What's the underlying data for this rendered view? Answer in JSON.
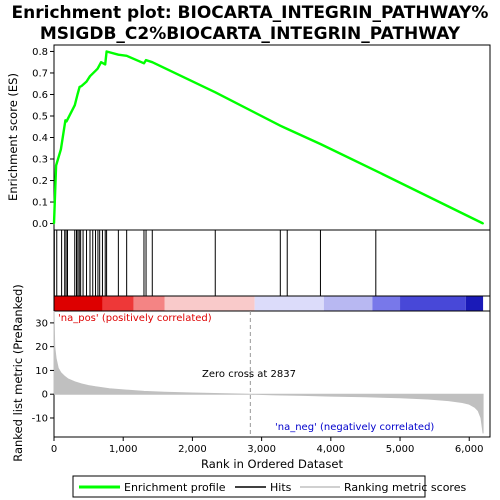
{
  "chart_data": {
    "type": "line",
    "title_line1": "Enrichment plot: BIOCARTA_INTEGRIN_PATHWAY%",
    "title_line2": "MSIGDB_C2%BIOCARTA_INTEGRIN_PATHWAY",
    "xlabel": "Rank in Ordered Dataset",
    "es_ylabel": "Enrichment score (ES)",
    "rank_ylabel": "Ranked list metric (PreRanked)",
    "xlim": [
      0,
      6300
    ],
    "es_ylim": [
      -0.03,
      0.83
    ],
    "rank_ylim": [
      -18,
      35
    ],
    "x_ticks": [
      0,
      1000,
      2000,
      3000,
      4000,
      5000,
      6000
    ],
    "x_tick_labels": [
      "0",
      "1,000",
      "2,000",
      "3,000",
      "4,000",
      "5,000",
      "6,000"
    ],
    "es_ticks": [
      0.0,
      0.1,
      0.2,
      0.3,
      0.4,
      0.5,
      0.6,
      0.7,
      0.8
    ],
    "es_tick_labels": [
      "0.0",
      "0.1",
      "0.2",
      "0.3",
      "0.4",
      "0.5",
      "0.6",
      "0.7",
      "0.8"
    ],
    "rank_ticks": [
      -10,
      0,
      10,
      20,
      30
    ],
    "rank_tick_labels": [
      "-10",
      "0",
      "10",
      "20",
      "30"
    ],
    "grid": false,
    "series": [
      {
        "name": "Enrichment profile",
        "color": "#00ff00",
        "x": [
          0,
          30,
          100,
          165,
          180,
          300,
          340,
          370,
          400,
          470,
          520,
          600,
          630,
          680,
          740,
          760,
          930,
          1050,
          1300,
          1330,
          1420,
          2330,
          3270,
          3370,
          3850,
          4650,
          6200
        ],
        "y": [
          0.0,
          0.27,
          0.345,
          0.48,
          0.475,
          0.55,
          0.6,
          0.635,
          0.64,
          0.66,
          0.685,
          0.71,
          0.72,
          0.75,
          0.74,
          0.8,
          0.785,
          0.78,
          0.745,
          0.76,
          0.75,
          0.61,
          0.455,
          0.44,
          0.37,
          0.245,
          0.0
        ]
      }
    ],
    "hits": [
      5,
      40,
      110,
      155,
      175,
      195,
      300,
      325,
      345,
      365,
      385,
      420,
      470,
      520,
      560,
      600,
      635,
      660,
      700,
      740,
      760,
      930,
      1050,
      1300,
      1330,
      1420,
      2330,
      3270,
      3370,
      3850,
      4650
    ],
    "heatmap_segments": [
      {
        "from": 0,
        "to": 700,
        "color": "#dd0000"
      },
      {
        "from": 700,
        "to": 1150,
        "color": "#ee3838"
      },
      {
        "from": 1150,
        "to": 1600,
        "color": "#f48484"
      },
      {
        "from": 1600,
        "to": 2900,
        "color": "#f9caca"
      },
      {
        "from": 2900,
        "to": 3900,
        "color": "#dcdcfa"
      },
      {
        "from": 3900,
        "to": 4600,
        "color": "#b8b8f2"
      },
      {
        "from": 4600,
        "to": 5000,
        "color": "#7878ea"
      },
      {
        "from": 5000,
        "to": 5950,
        "color": "#4848d8"
      },
      {
        "from": 5950,
        "to": 6200,
        "color": "#1a1ab8"
      }
    ],
    "ranked_metric": {
      "color": "#c0c0c0",
      "x": [
        0,
        10,
        30,
        60,
        100,
        150,
        200,
        300,
        400,
        500,
        600,
        800,
        1000,
        1300,
        1600,
        2000,
        2400,
        2837,
        3200,
        3600,
        4000,
        4500,
        5000,
        5400,
        5700,
        5900,
        6000,
        6080,
        6130,
        6170,
        6200
      ],
      "y": [
        35,
        20,
        15,
        11,
        9,
        7.6,
        6.5,
        5.2,
        4.3,
        3.6,
        3.1,
        2.3,
        1.8,
        1.2,
        0.8,
        0.5,
        0.25,
        0,
        -0.3,
        -0.5,
        -0.8,
        -1.1,
        -1.5,
        -2.0,
        -2.7,
        -3.5,
        -4.2,
        -5.5,
        -7,
        -10,
        -16.5
      ]
    },
    "zero_cross": 2837,
    "zero_cross_label": "Zero cross at 2837",
    "pos_label": "'na_pos' (positively correlated)",
    "neg_label": "'na_neg' (negatively correlated)",
    "legend_position": "bottom",
    "legend": [
      {
        "label": "Enrichment profile",
        "kind": "green-line",
        "color": "#00ff00"
      },
      {
        "label": "Hits",
        "kind": "black-line",
        "color": "#000000"
      },
      {
        "label": "Ranking metric scores",
        "kind": "gray-line",
        "color": "#c0c0c0"
      }
    ],
    "pos_label_color": "#dd0000",
    "neg_label_color": "#0000cc"
  }
}
